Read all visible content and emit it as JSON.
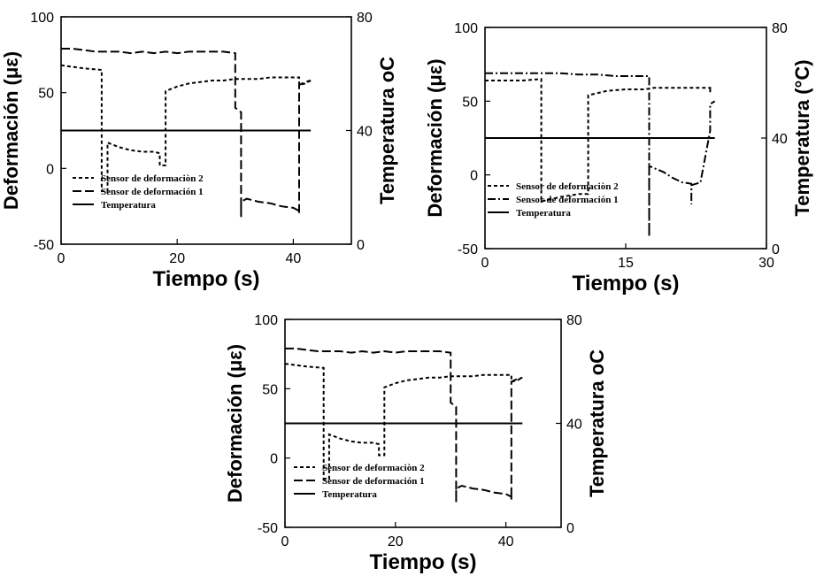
{
  "chart_data": [
    {
      "type": "line",
      "xlabel": "Tiempo (s)",
      "ylabel": "Deformación (με)",
      "y2label": "Temperatura oC",
      "xlim": [
        0,
        50
      ],
      "xticks": [
        0,
        20,
        40
      ],
      "ylim": [
        -50,
        100
      ],
      "yticks": [
        -50,
        0,
        50,
        100
      ],
      "y2lim": [
        0,
        80
      ],
      "y2ticks": [
        0,
        40,
        80
      ],
      "legend_position": "bottom-left",
      "series": [
        {
          "name": "Sensor de deformaciòn 2",
          "axis": "left",
          "dash": "4,3",
          "points": [
            [
              0,
              68
            ],
            [
              2,
              67
            ],
            [
              4,
              66
            ],
            [
              7,
              65
            ],
            [
              7,
              -15
            ],
            [
              8,
              -15
            ],
            [
              8,
              17
            ],
            [
              10,
              14
            ],
            [
              12,
              12
            ],
            [
              14,
              11
            ],
            [
              16,
              11
            ],
            [
              17,
              10
            ],
            [
              17,
              2
            ],
            [
              18,
              2
            ],
            [
              18,
              51
            ],
            [
              20,
              54
            ],
            [
              22,
              56
            ],
            [
              24,
              57
            ],
            [
              26,
              58
            ],
            [
              28,
              58
            ],
            [
              30,
              59
            ],
            [
              32,
              59
            ],
            [
              34,
              59
            ],
            [
              36,
              60
            ],
            [
              38,
              60
            ],
            [
              40,
              60
            ],
            [
              41,
              60
            ],
            [
              41,
              55
            ],
            [
              42,
              56
            ],
            [
              43,
              58
            ]
          ]
        },
        {
          "name": "Sensor de deformación 1",
          "axis": "left",
          "dash": "10,4",
          "points": [
            [
              0,
              79
            ],
            [
              2,
              79
            ],
            [
              4,
              78
            ],
            [
              6,
              77
            ],
            [
              8,
              77
            ],
            [
              10,
              77
            ],
            [
              12,
              76
            ],
            [
              14,
              77
            ],
            [
              16,
              76
            ],
            [
              18,
              77
            ],
            [
              20,
              76
            ],
            [
              22,
              77
            ],
            [
              24,
              77
            ],
            [
              26,
              77
            ],
            [
              28,
              77
            ],
            [
              30,
              76
            ],
            [
              30,
              60
            ],
            [
              30,
              40
            ],
            [
              31,
              37
            ],
            [
              31,
              -32
            ],
            [
              31,
              -22
            ],
            [
              32,
              -20
            ],
            [
              34,
              -22
            ],
            [
              36,
              -23
            ],
            [
              38,
              -25
            ],
            [
              40,
              -26
            ],
            [
              41,
              -28
            ],
            [
              41,
              -30
            ],
            [
              41,
              55
            ],
            [
              42,
              57
            ],
            [
              43,
              58
            ]
          ]
        },
        {
          "name": "Temperatura",
          "axis": "right",
          "dash": "",
          "points": [
            [
              0,
              40
            ],
            [
              10,
              40
            ],
            [
              20,
              40
            ],
            [
              30,
              40
            ],
            [
              40,
              40
            ],
            [
              43,
              40
            ]
          ]
        }
      ]
    },
    {
      "type": "line",
      "xlabel": "Tiempo  (s)",
      "ylabel": "Deformación (με)",
      "y2label": "Temperatura (°C)",
      "xlim": [
        0,
        30
      ],
      "xticks": [
        0,
        15,
        30
      ],
      "ylim": [
        -50,
        100
      ],
      "yticks": [
        -50,
        0,
        50,
        100
      ],
      "y2lim": [
        0,
        80
      ],
      "y2ticks": [
        0,
        40,
        80
      ],
      "legend_position": "bottom-left",
      "series": [
        {
          "name": "Sensor de deformaciòn 2",
          "axis": "left",
          "dash": "4,3",
          "points": [
            [
              0,
              64
            ],
            [
              2,
              64
            ],
            [
              4,
              64
            ],
            [
              6,
              65
            ],
            [
              6,
              -18
            ],
            [
              8,
              -15
            ],
            [
              10,
              -13
            ],
            [
              11,
              -13
            ],
            [
              11,
              54
            ],
            [
              13,
              57
            ],
            [
              15,
              58
            ],
            [
              17,
              58
            ],
            [
              18,
              59
            ],
            [
              20,
              59
            ],
            [
              22,
              59
            ],
            [
              24,
              59
            ],
            [
              24,
              56
            ],
            [
              24,
              60
            ]
          ]
        },
        {
          "name": "Sensor de deformación 1",
          "axis": "left",
          "dash": "9,3,2,3",
          "points": [
            [
              0,
              69
            ],
            [
              2,
              69
            ],
            [
              4,
              69
            ],
            [
              6,
              69
            ],
            [
              8,
              69
            ],
            [
              10,
              68
            ],
            [
              12,
              68
            ],
            [
              14,
              67
            ],
            [
              16,
              67
            ],
            [
              17.5,
              67
            ],
            [
              17.5,
              -42
            ],
            [
              17.5,
              6
            ],
            [
              19,
              2
            ],
            [
              20,
              -2
            ],
            [
              21,
              -5
            ],
            [
              22,
              -6
            ],
            [
              22,
              -20
            ],
            [
              22,
              -7
            ],
            [
              23,
              -5
            ],
            [
              23,
              -4
            ],
            [
              24,
              30
            ],
            [
              24,
              48
            ],
            [
              24.5,
              50
            ]
          ]
        },
        {
          "name": "Temperatura",
          "axis": "right",
          "dash": "",
          "points": [
            [
              0,
              40
            ],
            [
              10,
              40
            ],
            [
              20,
              40
            ],
            [
              24.5,
              40
            ]
          ]
        }
      ]
    },
    {
      "type": "line",
      "xlabel": "Tiempo (s)",
      "ylabel": "Deformación (με)",
      "y2label": "Temperatura oC",
      "xlim": [
        0,
        50
      ],
      "xticks": [
        0,
        20,
        40
      ],
      "ylim": [
        -50,
        100
      ],
      "yticks": [
        -50,
        0,
        50,
        100
      ],
      "y2lim": [
        0,
        80
      ],
      "y2ticks": [
        0,
        40,
        80
      ],
      "legend_position": "bottom-left",
      "series": [
        {
          "name": "Sensor de deformaciòn 2",
          "axis": "left",
          "dash": "4,3",
          "points": [
            [
              0,
              68
            ],
            [
              2,
              67
            ],
            [
              4,
              66
            ],
            [
              7,
              65
            ],
            [
              7,
              -15
            ],
            [
              8,
              -15
            ],
            [
              8,
              17
            ],
            [
              10,
              14
            ],
            [
              12,
              12
            ],
            [
              14,
              11
            ],
            [
              16,
              11
            ],
            [
              17,
              10
            ],
            [
              17,
              2
            ],
            [
              18,
              2
            ],
            [
              18,
              51
            ],
            [
              20,
              54
            ],
            [
              22,
              56
            ],
            [
              24,
              57
            ],
            [
              26,
              58
            ],
            [
              28,
              58
            ],
            [
              30,
              59
            ],
            [
              32,
              59
            ],
            [
              34,
              59
            ],
            [
              36,
              60
            ],
            [
              38,
              60
            ],
            [
              40,
              60
            ],
            [
              41,
              60
            ],
            [
              41,
              55
            ],
            [
              42,
              56
            ],
            [
              43,
              58
            ]
          ]
        },
        {
          "name": "Sensor de deformación 1",
          "axis": "left",
          "dash": "10,4",
          "points": [
            [
              0,
              79
            ],
            [
              2,
              79
            ],
            [
              4,
              78
            ],
            [
              6,
              77
            ],
            [
              8,
              77
            ],
            [
              10,
              77
            ],
            [
              12,
              76
            ],
            [
              14,
              77
            ],
            [
              16,
              76
            ],
            [
              18,
              77
            ],
            [
              20,
              76
            ],
            [
              22,
              77
            ],
            [
              24,
              77
            ],
            [
              26,
              77
            ],
            [
              28,
              77
            ],
            [
              30,
              76
            ],
            [
              30,
              60
            ],
            [
              30,
              40
            ],
            [
              31,
              37
            ],
            [
              31,
              -32
            ],
            [
              31,
              -22
            ],
            [
              32,
              -20
            ],
            [
              34,
              -22
            ],
            [
              36,
              -23
            ],
            [
              38,
              -25
            ],
            [
              40,
              -26
            ],
            [
              41,
              -28
            ],
            [
              41,
              -30
            ],
            [
              41,
              55
            ],
            [
              42,
              57
            ],
            [
              43,
              58
            ]
          ]
        },
        {
          "name": "Temperatura",
          "axis": "right",
          "dash": "",
          "points": [
            [
              0,
              40
            ],
            [
              10,
              40
            ],
            [
              20,
              40
            ],
            [
              30,
              40
            ],
            [
              40,
              40
            ],
            [
              43,
              40
            ]
          ]
        }
      ]
    }
  ]
}
